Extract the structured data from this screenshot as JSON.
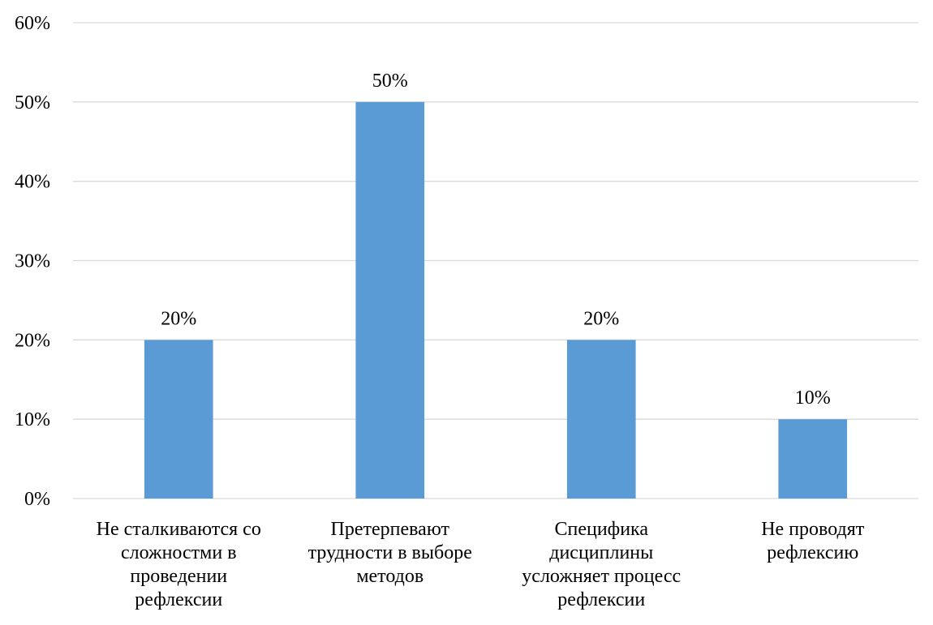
{
  "chart_data": {
    "type": "bar",
    "title": "",
    "xlabel": "",
    "ylabel": "",
    "categories": [
      [
        "Не сталкиваются со",
        "сложностми в",
        "проведении",
        "рефлексии"
      ],
      [
        "Претерпевают",
        "трудности в выборе",
        "методов"
      ],
      [
        "Специфика",
        "дисциплины",
        "усложняет процесс",
        "рефлексии"
      ],
      [
        "Не проводят",
        "рефлексию"
      ]
    ],
    "values": [
      20,
      50,
      20,
      10
    ],
    "data_labels": [
      "20%",
      "50%",
      "20%",
      "10%"
    ],
    "ylim": [
      0,
      60
    ],
    "yticks": [
      0,
      10,
      20,
      30,
      40,
      50,
      60
    ],
    "ytick_labels": [
      "0%",
      "10%",
      "20%",
      "30%",
      "40%",
      "50%",
      "60%"
    ],
    "grid": true,
    "legend": "none",
    "colors": {
      "bar": "#5B9BD5",
      "grid": "#D9D9D9",
      "text": "#000000"
    }
  }
}
